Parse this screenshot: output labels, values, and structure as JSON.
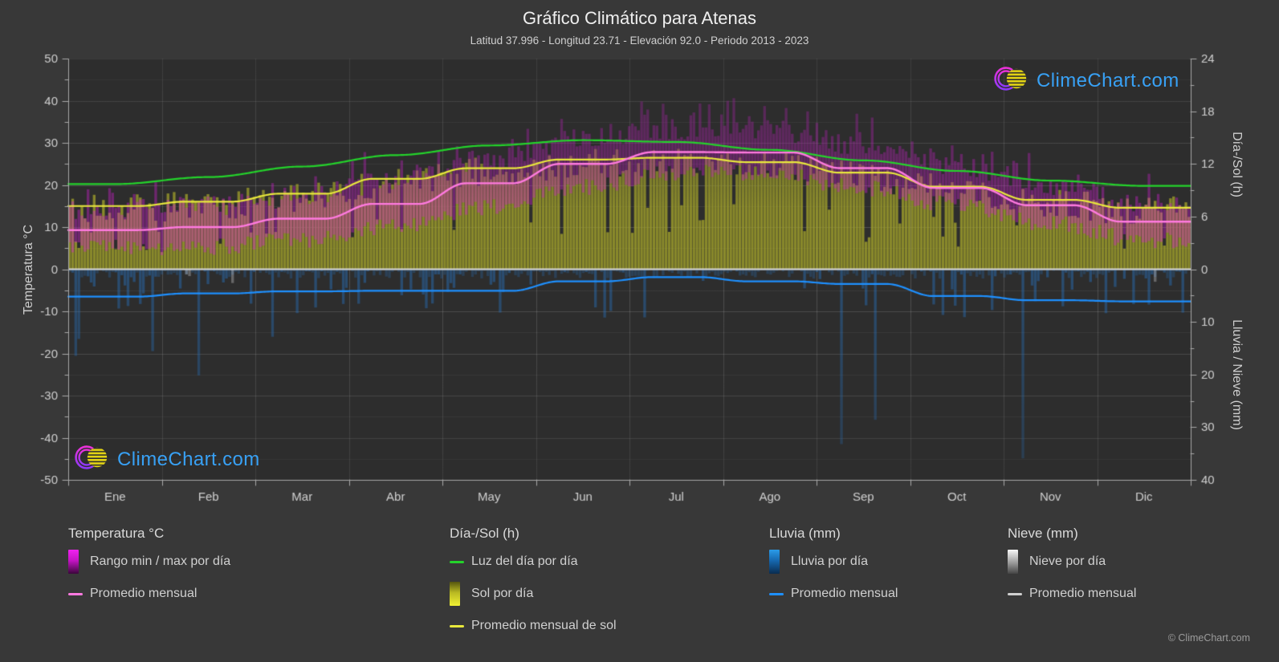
{
  "header": {
    "title": "Gráfico Climático para Atenas",
    "subtitle": "Latitud 37.996 - Longitud 23.71 - Elevación 92.0 - Periodo 2013 - 2023"
  },
  "watermark": {
    "text": "ClimeChart.com",
    "color": "#38a1f5"
  },
  "footer": {
    "copyright": "© ClimeChart.com"
  },
  "axes": {
    "left": {
      "label": "Temperatura °C",
      "ticks": [
        50,
        40,
        30,
        20,
        10,
        0,
        -10,
        -20,
        -30,
        -40,
        -50
      ],
      "range": [
        -50,
        50
      ]
    },
    "right_sun": {
      "label": "Día-/Sol (h)",
      "ticks": [
        24,
        18,
        12,
        6,
        0
      ],
      "range": [
        0,
        24
      ]
    },
    "right_precip": {
      "label": "Lluvia / Nieve (mm)",
      "ticks": [
        10,
        20,
        30,
        40
      ],
      "range": [
        0,
        40
      ]
    },
    "x": {
      "months": [
        "Ene",
        "Feb",
        "Mar",
        "Abr",
        "May",
        "Jun",
        "Jul",
        "Ago",
        "Sep",
        "Oct",
        "Nov",
        "Dic"
      ]
    }
  },
  "legend": {
    "groups": [
      {
        "title": "Temperatura °C",
        "items": [
          {
            "swatch": "gradient-magenta",
            "label": "Rango min / max por día"
          },
          {
            "swatch": "line-pink",
            "label": "Promedio mensual"
          }
        ]
      },
      {
        "title": "Día-/Sol (h)",
        "items": [
          {
            "swatch": "line-green",
            "label": "Luz del día por día"
          },
          {
            "swatch": "gradient-yellow",
            "label": "Sol por día"
          },
          {
            "swatch": "line-yellow",
            "label": "Promedio mensual de sol"
          }
        ]
      },
      {
        "title": "Lluvia (mm)",
        "items": [
          {
            "swatch": "gradient-blue",
            "label": "Lluvia por día"
          },
          {
            "swatch": "line-blue",
            "label": "Promedio mensual"
          }
        ]
      },
      {
        "title": "Nieve (mm)",
        "items": [
          {
            "swatch": "gradient-white",
            "label": "Nieve por día"
          },
          {
            "swatch": "line-gray",
            "label": "Promedio mensual"
          }
        ]
      }
    ]
  },
  "chart_data": {
    "type": "composite-climate",
    "months": [
      "Ene",
      "Feb",
      "Mar",
      "Abr",
      "May",
      "Jun",
      "Jul",
      "Ago",
      "Sep",
      "Oct",
      "Nov",
      "Dic"
    ],
    "axis_ranges": {
      "temperature_c": [
        -50,
        50
      ],
      "day_sun_h": [
        0,
        24
      ],
      "rain_snow_mm": [
        0,
        40
      ]
    },
    "grid": true,
    "noise_seed": 42,
    "series": [
      {
        "id": "daylight_daily",
        "name": "Luz del día por día",
        "type": "line",
        "shape": "smooth",
        "unit": "h",
        "color": "#24d32b",
        "values": [
          9.7,
          10.5,
          11.7,
          13.0,
          14.1,
          14.7,
          14.5,
          13.6,
          12.4,
          11.2,
          10.1,
          9.5
        ]
      },
      {
        "id": "sun_daily",
        "name": "Sol por día",
        "type": "bar",
        "unit": "h",
        "color": "#a3a32a",
        "monthly_mean": [
          7.2,
          7.7,
          8.6,
          10.3,
          11.5,
          12.5,
          12.7,
          12.2,
          11.0,
          9.4,
          7.9,
          7.0
        ]
      },
      {
        "id": "sun_monthly_avg",
        "name": "Promedio mensual de sol",
        "type": "line",
        "shape": "step-smooth",
        "unit": "h",
        "color": "#e9e93c",
        "values": [
          7.2,
          7.7,
          8.6,
          10.3,
          11.5,
          12.5,
          12.7,
          12.2,
          11.0,
          9.4,
          7.9,
          7.0
        ]
      },
      {
        "id": "temp_range_daily",
        "name": "Rango min / max por día",
        "type": "bar-range",
        "unit": "°C",
        "color": "#d21ed2",
        "monthly_min": [
          5.0,
          5.2,
          7.0,
          10.2,
          14.8,
          19.5,
          22.8,
          22.8,
          19.2,
          15.2,
          10.8,
          6.8
        ],
        "monthly_max": [
          14.2,
          15.0,
          17.3,
          21.0,
          26.0,
          30.8,
          33.2,
          33.0,
          29.3,
          24.6,
          19.6,
          15.8
        ]
      },
      {
        "id": "temp_monthly_avg",
        "name": "Promedio mensual",
        "type": "line",
        "shape": "step-smooth",
        "unit": "°C",
        "color": "#ff7ae0",
        "values": [
          9.3,
          10.0,
          12.0,
          15.5,
          20.4,
          25.0,
          27.8,
          27.7,
          24.0,
          19.3,
          15.2,
          11.3
        ]
      },
      {
        "id": "rain_daily",
        "name": "Lluvia por día",
        "type": "bar",
        "unit": "mm",
        "color": "#2876c6",
        "rain_day_probability": [
          0.5,
          0.45,
          0.4,
          0.33,
          0.28,
          0.18,
          0.1,
          0.12,
          0.2,
          0.35,
          0.5,
          0.55
        ]
      },
      {
        "id": "rain_monthly_avg",
        "name": "Promedio mensual",
        "type": "line",
        "shape": "step-smooth",
        "unit": "mm",
        "color": "#1e90ff",
        "values": [
          5.2,
          4.6,
          4.2,
          4.1,
          4.1,
          2.3,
          1.5,
          2.3,
          2.8,
          5.1,
          5.9,
          6.1
        ]
      },
      {
        "id": "snow_daily",
        "name": "Nieve por día",
        "type": "bar",
        "unit": "mm",
        "color": "#e0e0e4",
        "snow_day_probability": [
          0.06,
          0.05,
          0,
          0,
          0,
          0,
          0,
          0,
          0,
          0,
          0.01,
          0.04
        ]
      },
      {
        "id": "snow_monthly_avg",
        "name": "Promedio mensual",
        "type": "line",
        "shape": "step-smooth",
        "unit": "mm",
        "color": "#cccccc",
        "values": [
          0,
          0,
          0,
          0,
          0,
          0,
          0,
          0,
          0,
          0,
          0,
          0
        ]
      }
    ]
  },
  "colors": {
    "background": "#383838",
    "plot_background": "#2d2d2d",
    "grid_major": "rgba(220,220,220,0.20)",
    "grid_minor": "rgba(220,220,220,0.09)",
    "axis_line": "#a8a8a8",
    "zero_line": "#d8d8d8",
    "text_primary": "#efefef",
    "text_secondary": "#cfcfcf"
  }
}
